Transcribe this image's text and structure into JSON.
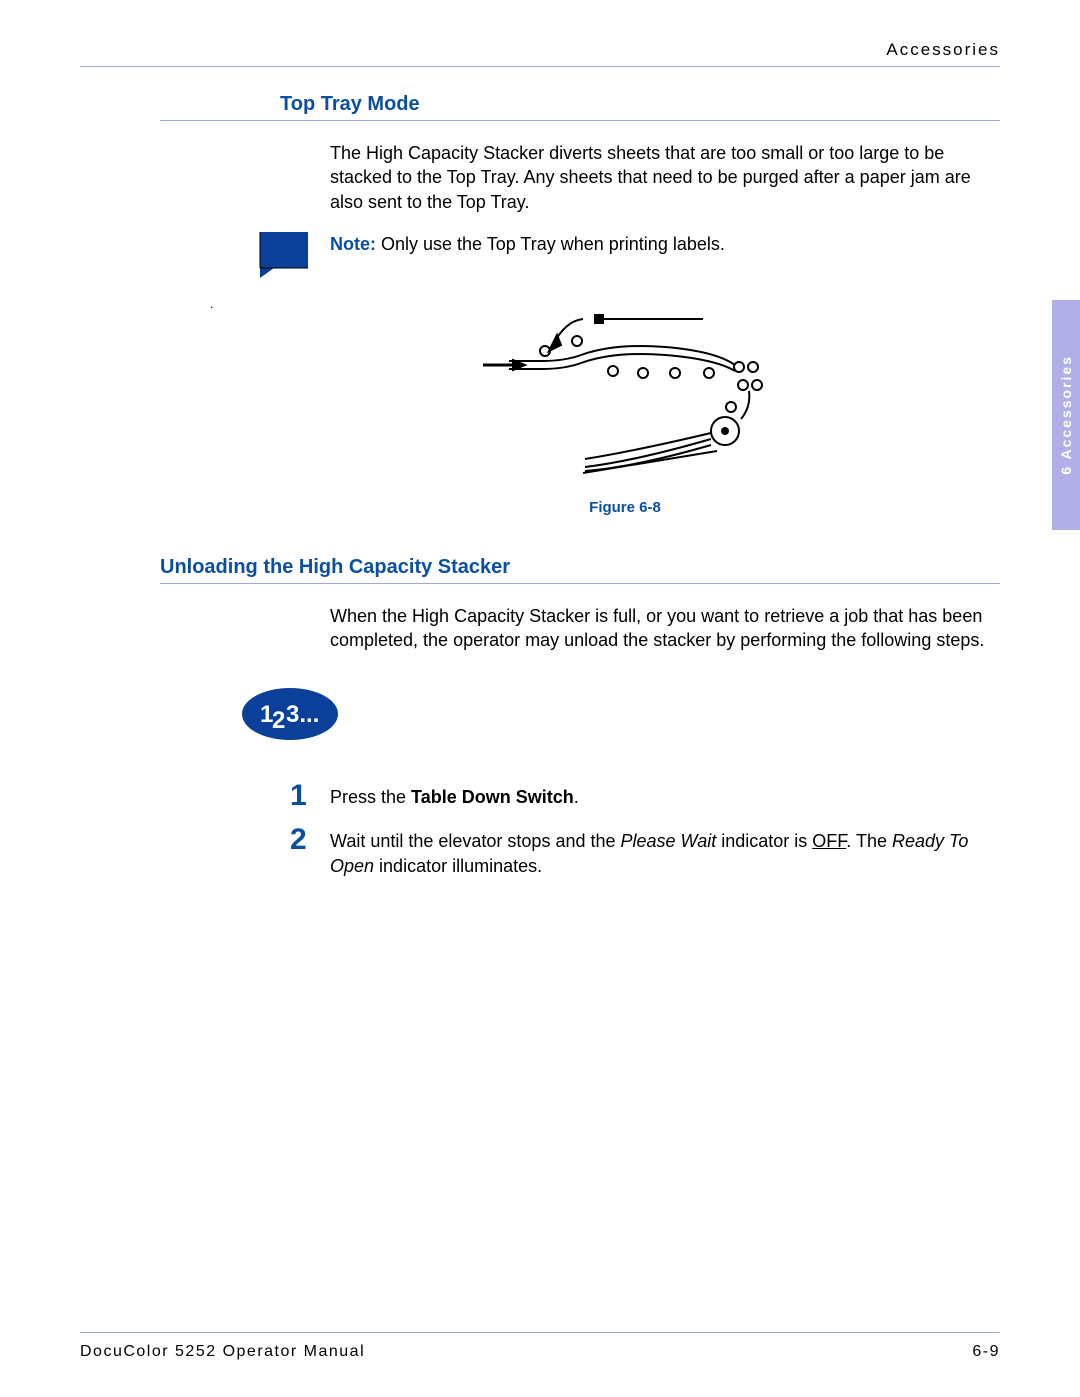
{
  "colors": {
    "heading": "#0b4fa0",
    "rule": "#9fa7e0",
    "sidetab_bg": "#b1b0e6",
    "sidetab_text": "#ffffff",
    "note_icon_fill": "#0a3f9a",
    "body_text": "#000000",
    "ellipse_fill": "#0a3f9a"
  },
  "header": {
    "right": "Accessories"
  },
  "sidetab": {
    "label": "6 Accessories"
  },
  "section1": {
    "heading": "Top Tray Mode",
    "paragraph": "The High Capacity Stacker diverts sheets that are too small or too large to be stacked to the Top Tray. Any sheets that need to be purged after a paper jam are also sent to the Top Tray.",
    "note_label": "Note:",
    "note_text": "  Only use the Top Tray when printing labels.",
    "figure_caption": "Figure 6-8"
  },
  "section2": {
    "heading": "Unloading the High Capacity Stacker",
    "paragraph": "When the High Capacity Stacker is full, or you want to retrieve a job that has been completed, the operator may unload the stacker by performing the following steps.",
    "steps_icon_text": "1 3...",
    "steps_icon_two": "2",
    "steps": [
      {
        "num": "1",
        "pre": "Press the ",
        "bold": "Table Down Switch",
        "post": "."
      },
      {
        "num": "2",
        "parts": [
          {
            "t": "Wait until the elevator stops and the "
          },
          {
            "t": "Please Wait",
            "style": "italic"
          },
          {
            "t": " indicator is "
          },
          {
            "t": "OFF",
            "style": "ul"
          },
          {
            "t": ". The "
          },
          {
            "t": "Ready To Open",
            "style": "italic"
          },
          {
            "t": " indicator illuminates."
          }
        ]
      }
    ]
  },
  "footer": {
    "left": "DocuColor 5252 Operator Manual",
    "right": "6-9"
  }
}
